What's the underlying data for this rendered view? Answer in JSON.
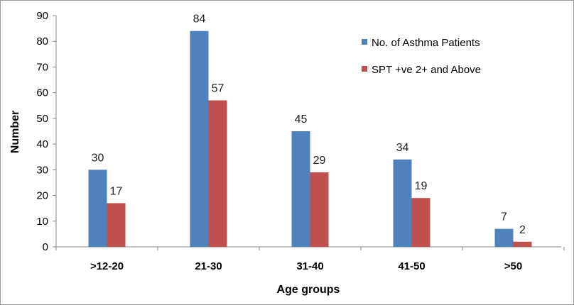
{
  "chart_data": {
    "type": "bar",
    "title": "",
    "xlabel": "Age groups",
    "ylabel": "Number",
    "categories": [
      ">12-20",
      "21-30",
      "31-40",
      "41-50",
      ">50"
    ],
    "series": [
      {
        "name": "No. of Asthma Patients",
        "values": [
          30,
          84,
          45,
          34,
          7
        ],
        "color": "#4F81BD"
      },
      {
        "name": "SPT  +ve 2+ and Above",
        "values": [
          17,
          57,
          29,
          19,
          2
        ],
        "color": "#C0504D"
      }
    ],
    "ylim": [
      0,
      90
    ],
    "yticks": [
      0,
      10,
      20,
      30,
      40,
      50,
      60,
      70,
      80,
      90
    ],
    "grid": false,
    "legend_position": "top-right",
    "data_labels": true
  }
}
